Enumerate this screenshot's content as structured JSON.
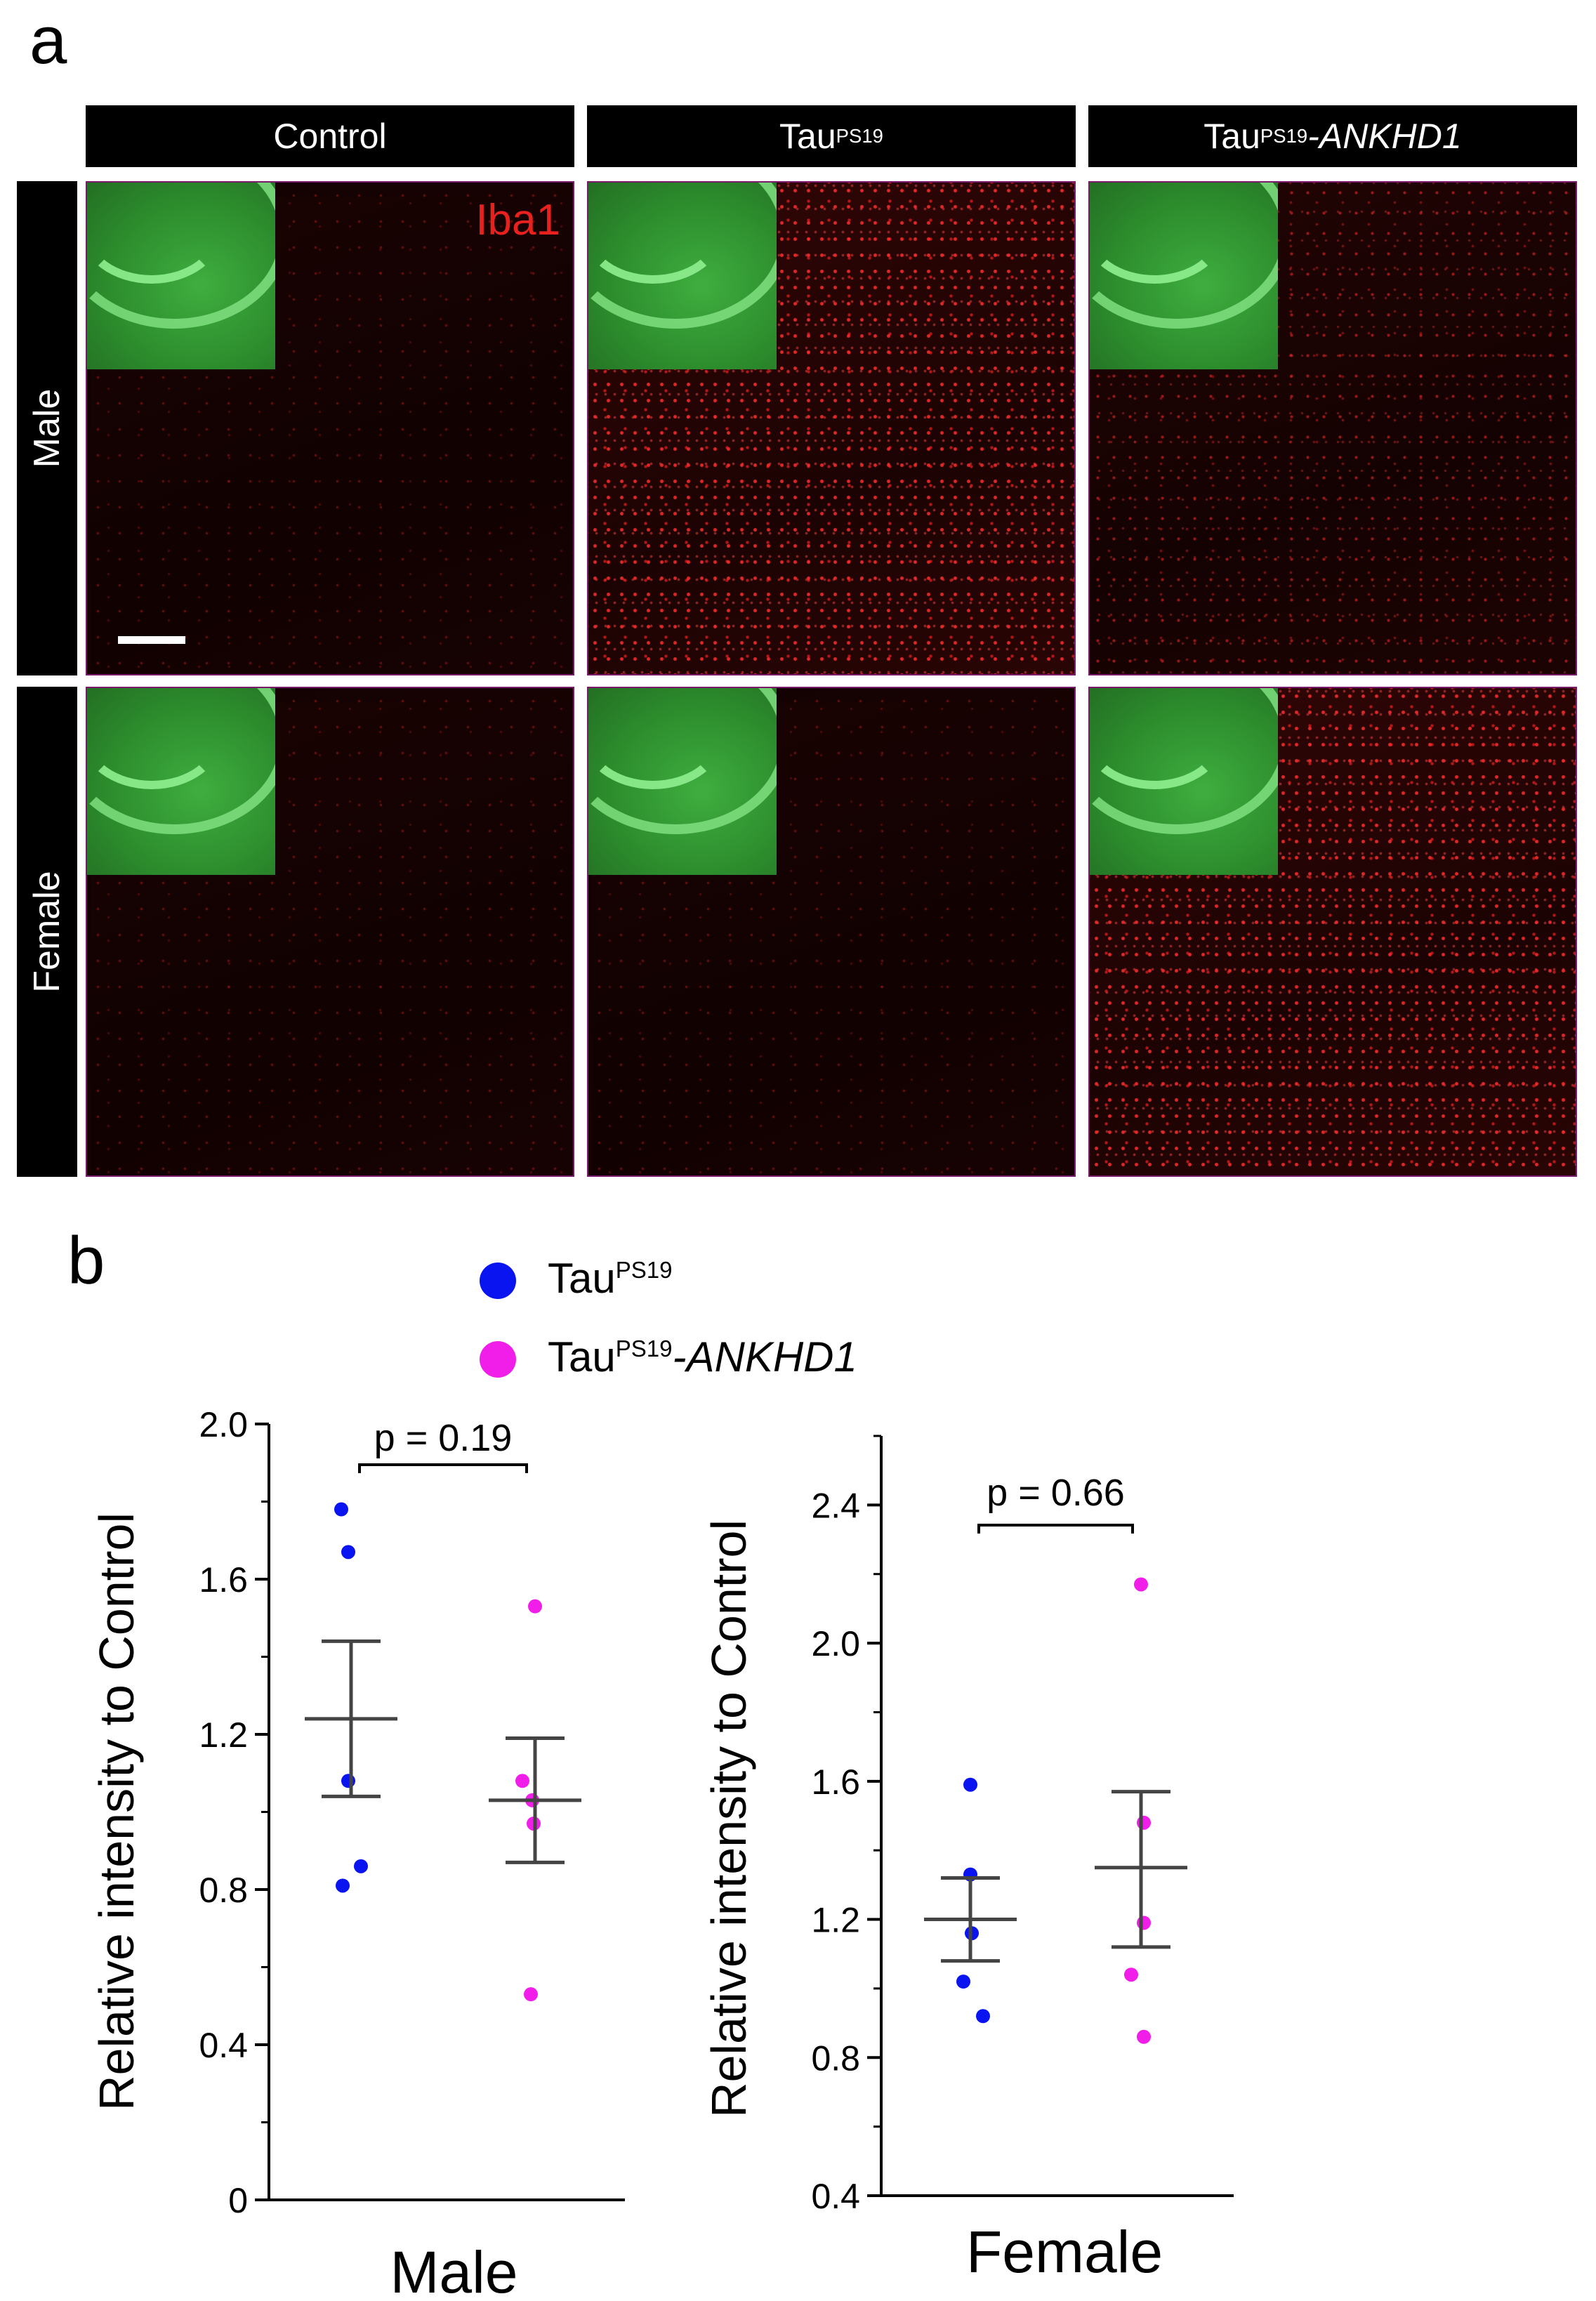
{
  "panel_a": {
    "letter": "a",
    "columns": [
      {
        "label": "Control",
        "sup": "",
        "suffix": ""
      },
      {
        "label": "Tau",
        "sup": "PS19",
        "suffix": ""
      },
      {
        "label": "Tau",
        "sup": "PS19",
        "suffix": "-ANKHD1"
      }
    ],
    "rows": [
      "Male",
      "Female"
    ],
    "stain_label": "Iba1",
    "stain_color": "#e8211f",
    "inset_color": "#3fae3f"
  },
  "panel_b": {
    "letter": "b",
    "legend": [
      {
        "base": "Tau",
        "sup": "PS19",
        "suffix": "",
        "color": "#0a14f0"
      },
      {
        "base": "Tau",
        "sup": "PS19",
        "suffix": "-ANKHD1",
        "color": "#f01ee8"
      }
    ]
  },
  "chart_data": [
    {
      "type": "scatter",
      "title": "",
      "xlabel": "Male",
      "ylabel": "Relative intensity to Control",
      "ylim": [
        0,
        2.0
      ],
      "yticks": [
        "0",
        "0.4",
        "0.8",
        "1.2",
        "1.6",
        "2.0"
      ],
      "annotation": "p = 0.19",
      "series": [
        {
          "group": "TauPS19",
          "color": "#0a14f0",
          "values": [
            1.78,
            1.67,
            1.08,
            0.86,
            0.81
          ],
          "mean": 1.24,
          "sem_low": 1.04,
          "sem_high": 1.44
        },
        {
          "group": "TauPS19-ANKHD1",
          "color": "#f01ee8",
          "values": [
            1.53,
            1.08,
            1.03,
            0.97,
            0.53
          ],
          "mean": 1.03,
          "sem_low": 0.87,
          "sem_high": 1.19
        }
      ]
    },
    {
      "type": "scatter",
      "title": "",
      "xlabel": "Female",
      "ylabel": "Relative intensity to Control",
      "ylim": [
        0.4,
        2.6
      ],
      "yticks": [
        "0.4",
        "0.8",
        "1.2",
        "1.6",
        "2.0",
        "2.4"
      ],
      "annotation": "p = 0.66",
      "series": [
        {
          "group": "TauPS19",
          "color": "#0a14f0",
          "values": [
            1.59,
            1.33,
            1.16,
            1.02,
            0.92
          ],
          "mean": 1.2,
          "sem_low": 1.08,
          "sem_high": 1.32
        },
        {
          "group": "TauPS19-ANKHD1",
          "color": "#f01ee8",
          "values": [
            2.17,
            1.48,
            1.19,
            1.04,
            0.86
          ],
          "mean": 1.35,
          "sem_low": 1.12,
          "sem_high": 1.57
        }
      ]
    }
  ]
}
